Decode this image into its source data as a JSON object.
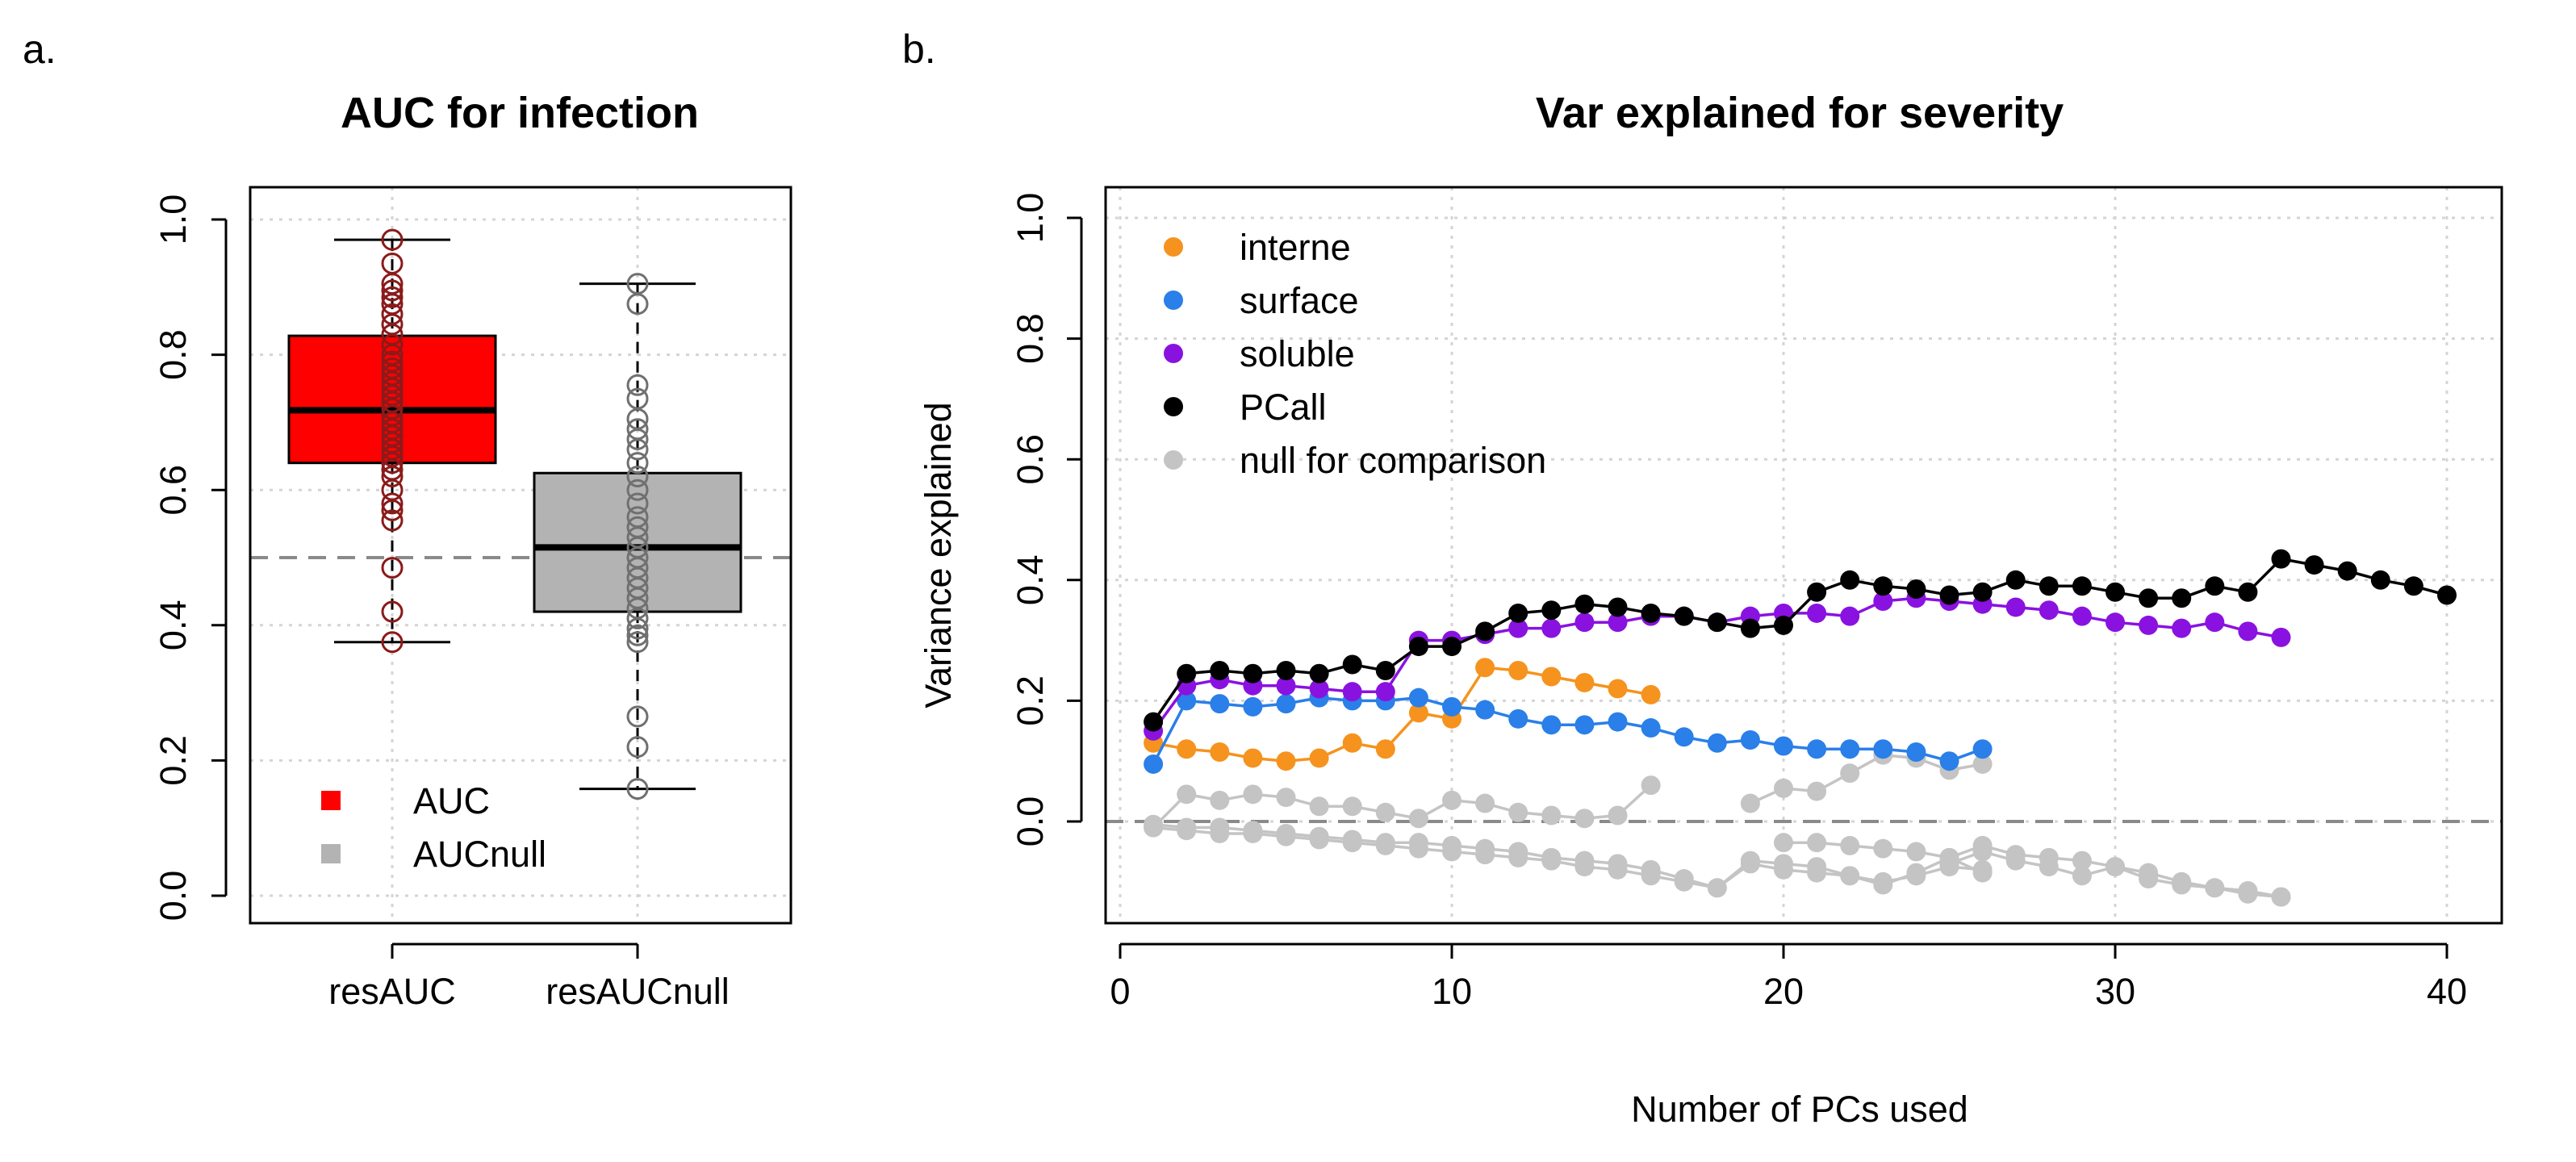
{
  "panels": {
    "a": "a.",
    "b": "b."
  },
  "chart_data": [
    {
      "type": "box",
      "title": "AUC for infection",
      "xlabel": "",
      "ylabel": "",
      "ylim": [
        0,
        1
      ],
      "yticks": [
        "0.0",
        "0.2",
        "0.4",
        "0.6",
        "0.8",
        "1.0"
      ],
      "reference_line": 0.5,
      "boxes": [
        {
          "name": "resAUC",
          "color": "#ff0000",
          "point_color": "#8b1a1a",
          "min": 0.375,
          "q1": 0.64,
          "median": 0.718,
          "q3": 0.828,
          "max": 0.97,
          "points": [
            0.97,
            0.935,
            0.905,
            0.895,
            0.885,
            0.875,
            0.86,
            0.845,
            0.83,
            0.815,
            0.8,
            0.79,
            0.78,
            0.77,
            0.76,
            0.75,
            0.74,
            0.73,
            0.72,
            0.71,
            0.7,
            0.69,
            0.68,
            0.67,
            0.66,
            0.65,
            0.64,
            0.63,
            0.62,
            0.6,
            0.58,
            0.57,
            0.555,
            0.485,
            0.42,
            0.375
          ]
        },
        {
          "name": "resAUCnull",
          "color": "#b3b3b3",
          "point_color": "#707070",
          "min": 0.158,
          "q1": 0.42,
          "median": 0.515,
          "q3": 0.625,
          "max": 0.905,
          "points": [
            0.905,
            0.875,
            0.755,
            0.735,
            0.705,
            0.69,
            0.675,
            0.66,
            0.64,
            0.62,
            0.6,
            0.58,
            0.56,
            0.545,
            0.53,
            0.515,
            0.5,
            0.485,
            0.47,
            0.455,
            0.44,
            0.425,
            0.41,
            0.395,
            0.385,
            0.375,
            0.265,
            0.22,
            0.158
          ]
        }
      ],
      "legend": [
        {
          "label": "AUC",
          "color": "#ff0000"
        },
        {
          "label": "AUCnull",
          "color": "#b3b3b3"
        }
      ]
    },
    {
      "type": "line",
      "title": "Var explained for severity",
      "xlabel": "Number of PCs used",
      "ylabel": "Variance explained",
      "xlim": [
        0,
        41
      ],
      "ylim": [
        -0.12,
        1
      ],
      "xticks": [
        "0",
        "10",
        "20",
        "30",
        "40"
      ],
      "yticks": [
        "0.0",
        "0.2",
        "0.4",
        "0.6",
        "0.8",
        "1.0"
      ],
      "reference_line": 0,
      "series": [
        {
          "name": "interne",
          "color": "#f5931e",
          "x": [
            1,
            2,
            3,
            4,
            5,
            6,
            7,
            8,
            9,
            10,
            11,
            12,
            13,
            14,
            15,
            16
          ],
          "values": [
            0.13,
            0.12,
            0.115,
            0.105,
            0.1,
            0.105,
            0.13,
            0.12,
            0.18,
            0.17,
            0.255,
            0.25,
            0.24,
            0.23,
            0.22,
            0.21
          ]
        },
        {
          "name": "surface",
          "color": "#2a7fe8",
          "x": [
            1,
            2,
            3,
            4,
            5,
            6,
            7,
            8,
            9,
            10,
            11,
            12,
            13,
            14,
            15,
            16,
            17,
            18,
            19,
            20,
            21,
            22,
            23,
            24,
            25,
            26
          ],
          "values": [
            0.095,
            0.2,
            0.195,
            0.19,
            0.195,
            0.205,
            0.2,
            0.2,
            0.205,
            0.19,
            0.185,
            0.17,
            0.16,
            0.16,
            0.165,
            0.155,
            0.14,
            0.13,
            0.135,
            0.125,
            0.12,
            0.12,
            0.12,
            0.115,
            0.1,
            0.12
          ]
        },
        {
          "name": "soluble",
          "color": "#8a12e0",
          "x": [
            1,
            2,
            3,
            4,
            5,
            6,
            7,
            8,
            9,
            10,
            11,
            12,
            13,
            14,
            15,
            16,
            17,
            18,
            19,
            20,
            21,
            22,
            23,
            24,
            25,
            26,
            27,
            28,
            29,
            30,
            31,
            32,
            33,
            34,
            35
          ],
          "values": [
            0.15,
            0.225,
            0.235,
            0.225,
            0.225,
            0.22,
            0.215,
            0.215,
            0.3,
            0.3,
            0.31,
            0.32,
            0.32,
            0.33,
            0.33,
            0.34,
            0.34,
            0.33,
            0.34,
            0.345,
            0.345,
            0.34,
            0.365,
            0.37,
            0.365,
            0.36,
            0.355,
            0.35,
            0.34,
            0.33,
            0.325,
            0.32,
            0.33,
            0.315,
            0.305
          ]
        },
        {
          "name": "PCall",
          "color": "#000000",
          "x": [
            1,
            2,
            3,
            4,
            5,
            6,
            7,
            8,
            9,
            10,
            11,
            12,
            13,
            14,
            15,
            16,
            17,
            18,
            19,
            20,
            21,
            22,
            23,
            24,
            25,
            26,
            27,
            28,
            29,
            30,
            31,
            32,
            33,
            34,
            35,
            36,
            37,
            38,
            39,
            40
          ],
          "values": [
            0.165,
            0.245,
            0.25,
            0.245,
            0.25,
            0.245,
            0.26,
            0.25,
            0.29,
            0.29,
            0.315,
            0.345,
            0.35,
            0.36,
            0.355,
            0.345,
            0.34,
            0.33,
            0.32,
            0.325,
            0.38,
            0.4,
            0.39,
            0.385,
            0.375,
            0.38,
            0.4,
            0.39,
            0.39,
            0.38,
            0.37,
            0.37,
            0.39,
            0.38,
            0.435,
            0.425,
            0.415,
            0.4,
            0.39,
            0.375
          ]
        },
        {
          "name": "null for comparison",
          "color": "#c4c4c4",
          "x": [
            1,
            2,
            3,
            4,
            5,
            6,
            7,
            8,
            9,
            10,
            11,
            12,
            13,
            14,
            15,
            16
          ],
          "values": [
            -0.01,
            0.045,
            0.035,
            0.045,
            0.04,
            0.025,
            0.025,
            0.015,
            0.005,
            0.035,
            0.03,
            0.015,
            0.01,
            0.005,
            0.01,
            0.06
          ]
        },
        {
          "name": "",
          "color": "#c4c4c4",
          "legend": false,
          "x": [
            1,
            2,
            3,
            4,
            5,
            6,
            7,
            8,
            9,
            10,
            11,
            12,
            13,
            14,
            15,
            16,
            17,
            18,
            19,
            20,
            21,
            22,
            23,
            24,
            25,
            26
          ],
          "values": [
            -0.005,
            -0.01,
            -0.01,
            -0.015,
            -0.02,
            -0.025,
            -0.03,
            -0.035,
            -0.035,
            -0.04,
            -0.045,
            -0.05,
            -0.06,
            -0.065,
            -0.07,
            -0.08,
            -0.095,
            -0.11,
            -0.065,
            -0.07,
            -0.075,
            -0.09,
            -0.105,
            -0.085,
            -0.06,
            -0.085
          ]
        },
        {
          "name": "",
          "color": "#c4c4c4",
          "legend": false,
          "x": [
            1,
            2,
            3,
            4,
            5,
            6,
            7,
            8,
            9,
            10,
            11,
            12,
            13,
            14,
            15,
            16,
            17,
            18,
            19,
            20,
            21,
            22,
            23,
            24,
            25,
            26
          ],
          "values": [
            -0.01,
            -0.015,
            -0.02,
            -0.02,
            -0.025,
            -0.03,
            -0.035,
            -0.04,
            -0.045,
            -0.05,
            -0.055,
            -0.06,
            -0.065,
            -0.075,
            -0.08,
            -0.09,
            -0.1,
            -0.11,
            -0.07,
            -0.08,
            -0.085,
            -0.09,
            -0.1,
            -0.09,
            -0.075,
            -0.08
          ]
        },
        {
          "name": "",
          "color": "#c4c4c4",
          "legend": false,
          "x": [
            19,
            20,
            21,
            22,
            23,
            24,
            25,
            26
          ],
          "values": [
            0.03,
            0.055,
            0.05,
            0.08,
            0.11,
            0.105,
            0.085,
            0.095
          ]
        },
        {
          "name": "",
          "color": "#c4c4c4",
          "legend": false,
          "x": [
            20,
            21,
            22,
            23,
            24,
            25,
            26,
            27,
            28,
            29,
            30,
            31,
            32,
            33,
            34,
            35
          ],
          "values": [
            -0.035,
            -0.035,
            -0.04,
            -0.045,
            -0.05,
            -0.06,
            -0.04,
            -0.055,
            -0.06,
            -0.065,
            -0.075,
            -0.085,
            -0.1,
            -0.11,
            -0.12,
            -0.125
          ]
        },
        {
          "name": "",
          "color": "#c4c4c4",
          "legend": false,
          "x": [
            25,
            26,
            27,
            28,
            29,
            30,
            31,
            32,
            33,
            34,
            35
          ],
          "values": [
            -0.07,
            -0.05,
            -0.065,
            -0.075,
            -0.09,
            -0.075,
            -0.095,
            -0.105,
            -0.11,
            -0.115,
            -0.125
          ]
        }
      ]
    }
  ]
}
